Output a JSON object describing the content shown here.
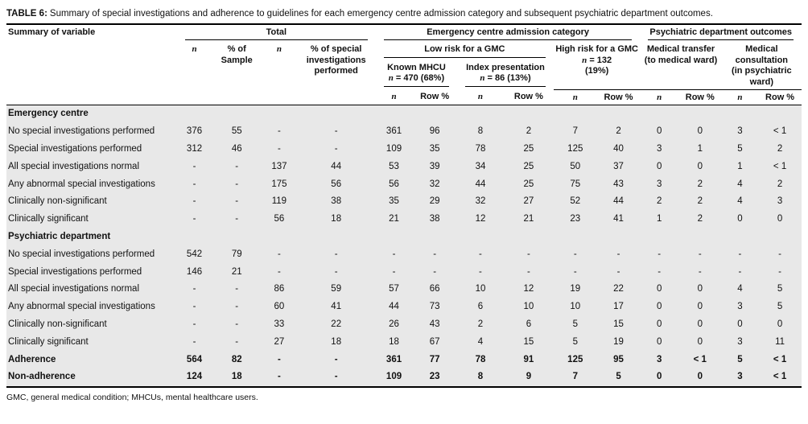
{
  "page": {
    "title_label": "TABLE 6:",
    "title_text": "Summary of special investigations and adherence to guidelines for each emergency centre admission category and subsequent psychiatric department outcomes.",
    "footnote": "GMC, general medical condition; MHCUs, mental healthcare users."
  },
  "colors": {
    "body_row_bg": "#e8e8e8",
    "rule_color": "#000000",
    "text": "#111111"
  },
  "header": {
    "summary_of_variable": "Summary of variable",
    "total": "Total",
    "ec_admission": "Emergency centre admission category",
    "psych_outcomes": "Psychiatric department outcomes",
    "low_risk": "Low risk for a GMC",
    "n_symbol": "n",
    "row_pct": "Row %",
    "pct_sample": "% of Sample",
    "pct_special": "% of special investigations performed",
    "known_mhcu_name": "Known MHCU",
    "known_mhcu_stats": "= 470 (68%)",
    "index_name": "Index presentation",
    "index_stats": "= 86 (13%)",
    "high_risk_name": "High risk  for a GMC",
    "high_risk_stats": "= 132",
    "high_risk_pct": "(19%)",
    "medical_transfer_name": "Medical transfer",
    "medical_transfer_sub": "(to medical ward)",
    "medical_consult_name": "Medical consultation",
    "medical_consult_sub": "(in psychiatric ward)"
  },
  "rows": [
    {
      "type": "section",
      "label": "Emergency centre"
    },
    {
      "type": "data",
      "label": "No special investigations performed",
      "cells": [
        "376",
        "55",
        "-",
        "-",
        "361",
        "96",
        "8",
        "2",
        "7",
        "2",
        "0",
        "0",
        "3",
        "< 1"
      ]
    },
    {
      "type": "data",
      "label": "Special investigations performed",
      "cells": [
        "312",
        "46",
        "-",
        "-",
        "109",
        "35",
        "78",
        "25",
        "125",
        "40",
        "3",
        "1",
        "5",
        "2"
      ]
    },
    {
      "type": "data",
      "label": "All special investigations normal",
      "cells": [
        "-",
        "-",
        "137",
        "44",
        "53",
        "39",
        "34",
        "25",
        "50",
        "37",
        "0",
        "0",
        "1",
        "< 1"
      ]
    },
    {
      "type": "data",
      "label": "Any abnormal special investigations",
      "cells": [
        "-",
        "-",
        "175",
        "56",
        "56",
        "32",
        "44",
        "25",
        "75",
        "43",
        "3",
        "2",
        "4",
        "2"
      ]
    },
    {
      "type": "data",
      "label": "Clinically non-significant",
      "cells": [
        "-",
        "-",
        "119",
        "38",
        "35",
        "29",
        "32",
        "27",
        "52",
        "44",
        "2",
        "2",
        "4",
        "3"
      ]
    },
    {
      "type": "data",
      "label": "Clinically significant",
      "cells": [
        "-",
        "-",
        "56",
        "18",
        "21",
        "38",
        "12",
        "21",
        "23",
        "41",
        "1",
        "2",
        "0",
        "0"
      ]
    },
    {
      "type": "section",
      "label": "Psychiatric department"
    },
    {
      "type": "data",
      "label": "No special investigations performed",
      "cells": [
        "542",
        "79",
        "-",
        "-",
        "-",
        "-",
        "-",
        "-",
        "-",
        "-",
        "-",
        "-",
        "-",
        "-"
      ]
    },
    {
      "type": "data",
      "label": "Special investigations performed",
      "cells": [
        "146",
        "21",
        "-",
        "-",
        "-",
        "-",
        "-",
        "-",
        "-",
        "-",
        "-",
        "-",
        "-",
        "-"
      ]
    },
    {
      "type": "data",
      "label": "All special investigations normal",
      "cells": [
        "-",
        "-",
        "86",
        "59",
        "57",
        "66",
        "10",
        "12",
        "19",
        "22",
        "0",
        "0",
        "4",
        "5"
      ]
    },
    {
      "type": "data",
      "label": "Any abnormal special investigations",
      "cells": [
        "-",
        "-",
        "60",
        "41",
        "44",
        "73",
        "6",
        "10",
        "10",
        "17",
        "0",
        "0",
        "3",
        "5"
      ]
    },
    {
      "type": "data",
      "label": "Clinically non-significant",
      "cells": [
        "-",
        "-",
        "33",
        "22",
        "26",
        "43",
        "2",
        "6",
        "5",
        "15",
        "0",
        "0",
        "0",
        "0"
      ]
    },
    {
      "type": "data",
      "label": "Clinically significant",
      "cells": [
        "-",
        "-",
        "27",
        "18",
        "18",
        "67",
        "4",
        "15",
        "5",
        "19",
        "0",
        "0",
        "3",
        "11"
      ]
    },
    {
      "type": "bold",
      "label": "Adherence",
      "cells": [
        "564",
        "82",
        "-",
        "-",
        "361",
        "77",
        "78",
        "91",
        "125",
        "95",
        "3",
        "< 1",
        "5",
        "< 1"
      ]
    },
    {
      "type": "bold",
      "label": "Non-adherence",
      "cells": [
        "124",
        "18",
        "-",
        "-",
        "109",
        "23",
        "8",
        "9",
        "7",
        "5",
        "0",
        "0",
        "3",
        "< 1"
      ]
    }
  ]
}
